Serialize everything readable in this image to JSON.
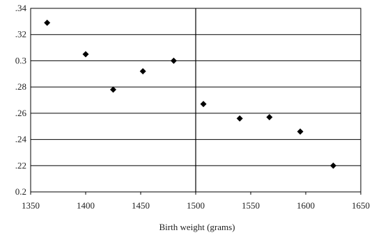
{
  "chart_data": {
    "type": "scatter",
    "title": "",
    "xlabel": "Birth weight (grams)",
    "ylabel": "",
    "xlim": [
      1350,
      1650
    ],
    "ylim": [
      0.2,
      0.34
    ],
    "x_ticks": [
      1350,
      1400,
      1450,
      1500,
      1550,
      1600,
      1650
    ],
    "x_tick_labels": [
      "1350",
      "1400",
      "1450",
      "1500",
      "1550",
      "1600",
      "1650"
    ],
    "y_ticks": [
      0.2,
      0.22,
      0.24,
      0.26,
      0.28,
      0.3,
      0.32,
      0.34
    ],
    "y_tick_labels": [
      "0.2",
      ".22",
      ".24",
      ".26",
      ".28",
      "0.3",
      ".32",
      ".34"
    ],
    "grid": "horizontal",
    "reference_line_x": 1500,
    "marker": "diamond",
    "marker_color": "#000000",
    "points": [
      {
        "x": 1365,
        "y": 0.329
      },
      {
        "x": 1400,
        "y": 0.305
      },
      {
        "x": 1425,
        "y": 0.278
      },
      {
        "x": 1452,
        "y": 0.292
      },
      {
        "x": 1480,
        "y": 0.3
      },
      {
        "x": 1507,
        "y": 0.267
      },
      {
        "x": 1540,
        "y": 0.256
      },
      {
        "x": 1567,
        "y": 0.257
      },
      {
        "x": 1595,
        "y": 0.246
      },
      {
        "x": 1625,
        "y": 0.22
      }
    ]
  }
}
